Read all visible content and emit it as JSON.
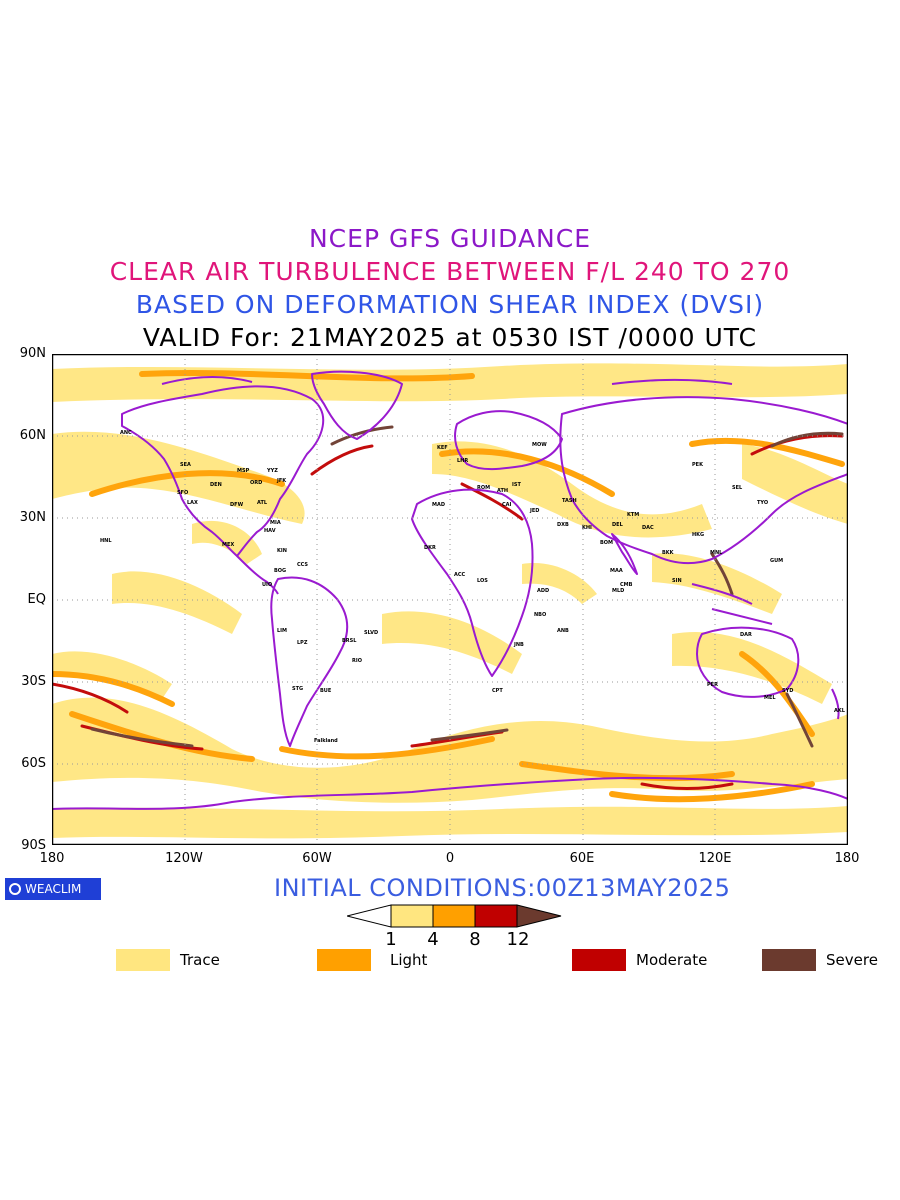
{
  "titles": {
    "line1": "NCEP GFS GUIDANCE",
    "line2": "CLEAR AIR TURBULENCE BETWEEN F/L 240 TO 270",
    "line3": "BASED ON DEFORMATION SHEAR INDEX (DVSI)",
    "line4": "VALID For: 21MAY2025 at 0530 IST /0000 UTC",
    "line1_color": "#8c18c8",
    "line2_color": "#e0157a",
    "line3_color": "#2f55e6",
    "line4_color": "#000000"
  },
  "axes": {
    "lat_labels": [
      "90N",
      "60N",
      "30N",
      "EQ",
      "30S",
      "60S",
      "90S"
    ],
    "lon_labels": [
      "180",
      "120W",
      "60W",
      "0",
      "60E",
      "120E",
      "180"
    ]
  },
  "map": {
    "coastline_color": "#9a1ad0",
    "stations": [
      "ANC",
      "SEA",
      "SFO",
      "LAX",
      "DEN",
      "DFW",
      "MSP",
      "ORD",
      "ATL",
      "JFK",
      "YYZ",
      "MIA",
      "MEX",
      "HNL",
      "HAV",
      "KIN",
      "BOG",
      "CCS",
      "UIO",
      "LIM",
      "LPZ",
      "BRSL",
      "SLVD",
      "RIO",
      "STG",
      "BUE",
      "Falkland",
      "KEF",
      "LHR",
      "MAD",
      "ROM",
      "ATH",
      "CAI",
      "JED",
      "DXB",
      "KHI",
      "DEL",
      "BOM",
      "MAA",
      "CMB",
      "KTM",
      "DAC",
      "BKK",
      "SIN",
      "HKG",
      "PEK",
      "TYO",
      "SEL",
      "MNL",
      "GUM",
      "PER",
      "SYD",
      "MEL",
      "AKL",
      "JNB",
      "CPT",
      "NBO",
      "ADD",
      "LOS",
      "DKR",
      "ACC",
      "MOW",
      "IST",
      "TASH",
      "ANB",
      "MLD",
      "DAR"
    ]
  },
  "logo": {
    "text": "WEACLIM",
    "bg_color": "#1f3fd6"
  },
  "initial_conditions": {
    "text": "INITIAL CONDITIONS:00Z13MAY2025",
    "color": "#3a5de0"
  },
  "colorbar": {
    "tick_labels": [
      "1",
      "4",
      "8",
      "12"
    ],
    "colors": [
      "#ffe680",
      "#ffa000",
      "#c00000",
      "#6b3a2e"
    ]
  },
  "legend": [
    {
      "label": "Trace",
      "color": "#ffe680"
    },
    {
      "label": "Light",
      "color": "#ffa000"
    },
    {
      "label": "Moderate",
      "color": "#c00000"
    },
    {
      "label": "Severe",
      "color": "#6b3a2e"
    }
  ]
}
